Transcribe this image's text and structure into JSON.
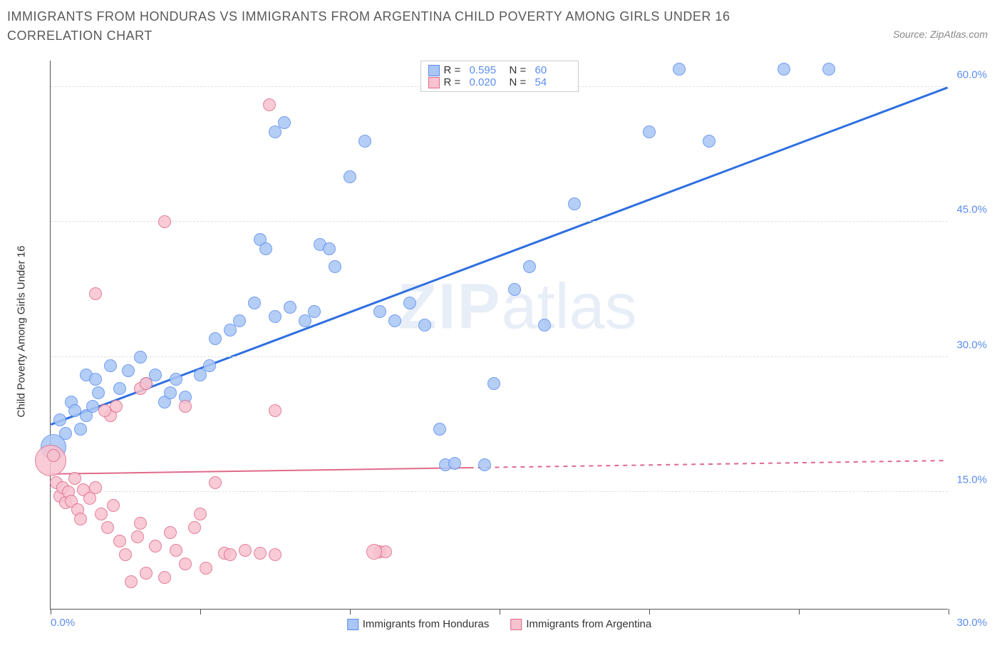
{
  "title": "IMMIGRANTS FROM HONDURAS VS IMMIGRANTS FROM ARGENTINA CHILD POVERTY AMONG GIRLS UNDER 16 CORRELATION CHART",
  "source": "Source: ZipAtlas.com",
  "watermark_zip": "ZIP",
  "watermark_atlas": "atlas",
  "ylabel": "Child Poverty Among Girls Under 16",
  "chart": {
    "type": "scatter",
    "background_color": "#ffffff",
    "grid_color": "#e0e0e0",
    "axis_color": "#555555",
    "xlim": [
      0,
      30
    ],
    "ylim": [
      2,
      63
    ],
    "xticks": [
      0,
      5,
      10,
      15,
      20,
      25,
      30
    ],
    "xaxis_left_label": "0.0%",
    "xaxis_right_label": "30.0%",
    "ygrid": [
      {
        "value": 15,
        "label": "15.0%"
      },
      {
        "value": 30,
        "label": "30.0%"
      },
      {
        "value": 45,
        "label": "45.0%"
      },
      {
        "value": 60,
        "label": "60.0%"
      }
    ],
    "point_radius": 9,
    "point_stroke_opacity": 1,
    "point_fill_opacity": 0.35,
    "series": [
      {
        "id": "honduras",
        "label": "Immigrants from Honduras",
        "fill": "#a9c6f5",
        "stroke": "#5b8def",
        "R_label": "R =",
        "R_value": "0.595",
        "N_label": "N =",
        "N_value": "60",
        "trend": {
          "x1": 0,
          "y1": 22.5,
          "x2": 30,
          "y2": 60,
          "color": "#2f6fe0",
          "width": 3,
          "dash": "none",
          "solid_until_x": 30
        },
        "points": [
          [
            0.1,
            20,
            18
          ],
          [
            0.3,
            23
          ],
          [
            0.5,
            21.5
          ],
          [
            0.7,
            25
          ],
          [
            0.8,
            24
          ],
          [
            1.0,
            22
          ],
          [
            1.2,
            23.5
          ],
          [
            1.4,
            24.5
          ],
          [
            1.6,
            26
          ],
          [
            1.2,
            28
          ],
          [
            1.5,
            27.5
          ],
          [
            2.0,
            29
          ],
          [
            2.3,
            26.5
          ],
          [
            2.6,
            28.5
          ],
          [
            3.0,
            30
          ],
          [
            3.2,
            27
          ],
          [
            3.5,
            28
          ],
          [
            3.8,
            25
          ],
          [
            4.0,
            26
          ],
          [
            4.2,
            27.5
          ],
          [
            4.5,
            25.5
          ],
          [
            5.0,
            28
          ],
          [
            5.3,
            29
          ],
          [
            5.5,
            32
          ],
          [
            6.0,
            33
          ],
          [
            6.3,
            34
          ],
          [
            6.8,
            36
          ],
          [
            7.0,
            43
          ],
          [
            7.2,
            42
          ],
          [
            7.5,
            34.5
          ],
          [
            8.0,
            35.5
          ],
          [
            8.5,
            34
          ],
          [
            8.8,
            35
          ],
          [
            9.0,
            42.5
          ],
          [
            9.3,
            42
          ],
          [
            9.5,
            40
          ],
          [
            10.0,
            50
          ],
          [
            10.5,
            54
          ],
          [
            11.0,
            35
          ],
          [
            11.5,
            34
          ],
          [
            12.0,
            36
          ],
          [
            12.5,
            33.5
          ],
          [
            13.0,
            22
          ],
          [
            13.2,
            18
          ],
          [
            13.5,
            18.2
          ],
          [
            14.5,
            18
          ],
          [
            14.8,
            27
          ],
          [
            15.5,
            37.5
          ],
          [
            16.0,
            40
          ],
          [
            16.5,
            33.5
          ],
          [
            17.5,
            47
          ],
          [
            7.5,
            55
          ],
          [
            7.8,
            56
          ],
          [
            20.0,
            55
          ],
          [
            22.0,
            54
          ],
          [
            21.0,
            62
          ],
          [
            26.0,
            62
          ],
          [
            24.5,
            62
          ]
        ]
      },
      {
        "id": "argentina",
        "label": "Immigrants from Argentina",
        "fill": "#f7c2d0",
        "stroke": "#e06a8a",
        "R_label": "R =",
        "R_value": "0.020",
        "N_label": "N =",
        "N_value": "54",
        "trend": {
          "x1": 0,
          "y1": 17,
          "x2": 30,
          "y2": 18.5,
          "color": "#e06a8a",
          "width": 2,
          "dash": "6,6",
          "solid_until_x": 14
        },
        "points": [
          [
            0.0,
            18.5,
            22
          ],
          [
            0.1,
            19
          ],
          [
            0.2,
            16
          ],
          [
            0.3,
            14.5
          ],
          [
            0.4,
            15.5
          ],
          [
            0.5,
            13.8
          ],
          [
            0.6,
            15
          ],
          [
            0.7,
            14
          ],
          [
            0.8,
            16.5
          ],
          [
            0.9,
            13
          ],
          [
            1.0,
            12
          ],
          [
            1.1,
            15.2
          ],
          [
            1.3,
            14.3
          ],
          [
            1.5,
            15.5
          ],
          [
            1.7,
            12.5
          ],
          [
            1.9,
            11
          ],
          [
            2.0,
            23.5
          ],
          [
            2.1,
            13.5
          ],
          [
            2.3,
            9.5
          ],
          [
            2.5,
            8
          ],
          [
            2.7,
            5
          ],
          [
            2.9,
            10
          ],
          [
            3.0,
            11.5
          ],
          [
            3.2,
            6
          ],
          [
            3.5,
            9
          ],
          [
            3.8,
            5.5
          ],
          [
            4.0,
            10.5
          ],
          [
            4.2,
            8.5
          ],
          [
            4.5,
            7
          ],
          [
            4.8,
            11
          ],
          [
            5.0,
            12.5
          ],
          [
            5.2,
            6.5
          ],
          [
            5.5,
            16
          ],
          [
            5.8,
            8.2
          ],
          [
            6.0,
            8
          ],
          [
            6.5,
            8.5
          ],
          [
            7.0,
            8.2
          ],
          [
            7.5,
            8
          ],
          [
            1.8,
            24
          ],
          [
            2.2,
            24.5
          ],
          [
            3.0,
            26.5
          ],
          [
            3.2,
            27
          ],
          [
            4.5,
            24.5
          ],
          [
            1.5,
            37
          ],
          [
            3.8,
            45
          ],
          [
            7.5,
            24
          ],
          [
            7.3,
            58
          ],
          [
            11.0,
            8.3
          ],
          [
            11.2,
            8.3
          ],
          [
            10.8,
            8.3,
            11
          ]
        ]
      }
    ]
  },
  "legend_bottom": [
    {
      "label": "Immigrants from Honduras",
      "fill": "#a9c6f5",
      "stroke": "#5b8def"
    },
    {
      "label": "Immigrants from Argentina",
      "fill": "#f7c2d0",
      "stroke": "#e06a8a"
    }
  ]
}
